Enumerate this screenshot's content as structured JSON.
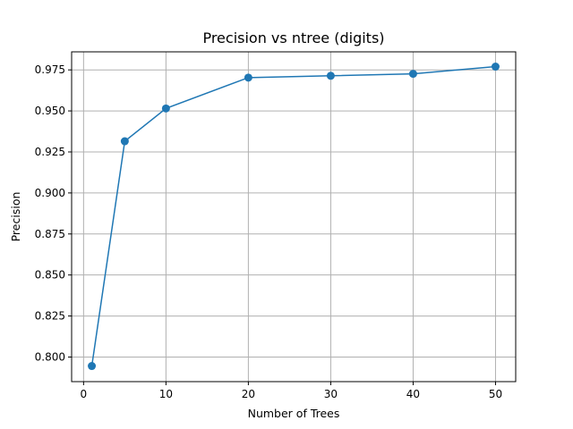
{
  "chart_data": {
    "type": "line",
    "title": "Precision vs ntree (digits)",
    "xlabel": "Number of Trees",
    "ylabel": "Precision",
    "x": [
      1,
      5,
      10,
      20,
      30,
      40,
      50
    ],
    "series": [
      {
        "values": [
          0.7945,
          0.9315,
          0.9515,
          0.9703,
          0.9714,
          0.9726,
          0.977
        ],
        "color": "#1f77b4",
        "marker": "circle"
      }
    ],
    "xlim": [
      -1.45,
      52.45
    ],
    "ylim": [
      0.785,
      0.986
    ],
    "xticks": [
      0,
      10,
      20,
      30,
      40,
      50
    ],
    "yticks": [
      0.8,
      0.825,
      0.85,
      0.875,
      0.9,
      0.925,
      0.95,
      0.975
    ],
    "xtick_labels": [
      "0",
      "10",
      "20",
      "30",
      "40",
      "50"
    ],
    "ytick_labels": [
      "0.800",
      "0.825",
      "0.850",
      "0.875",
      "0.900",
      "0.925",
      "0.950",
      "0.975"
    ],
    "grid": true,
    "legend": false
  }
}
